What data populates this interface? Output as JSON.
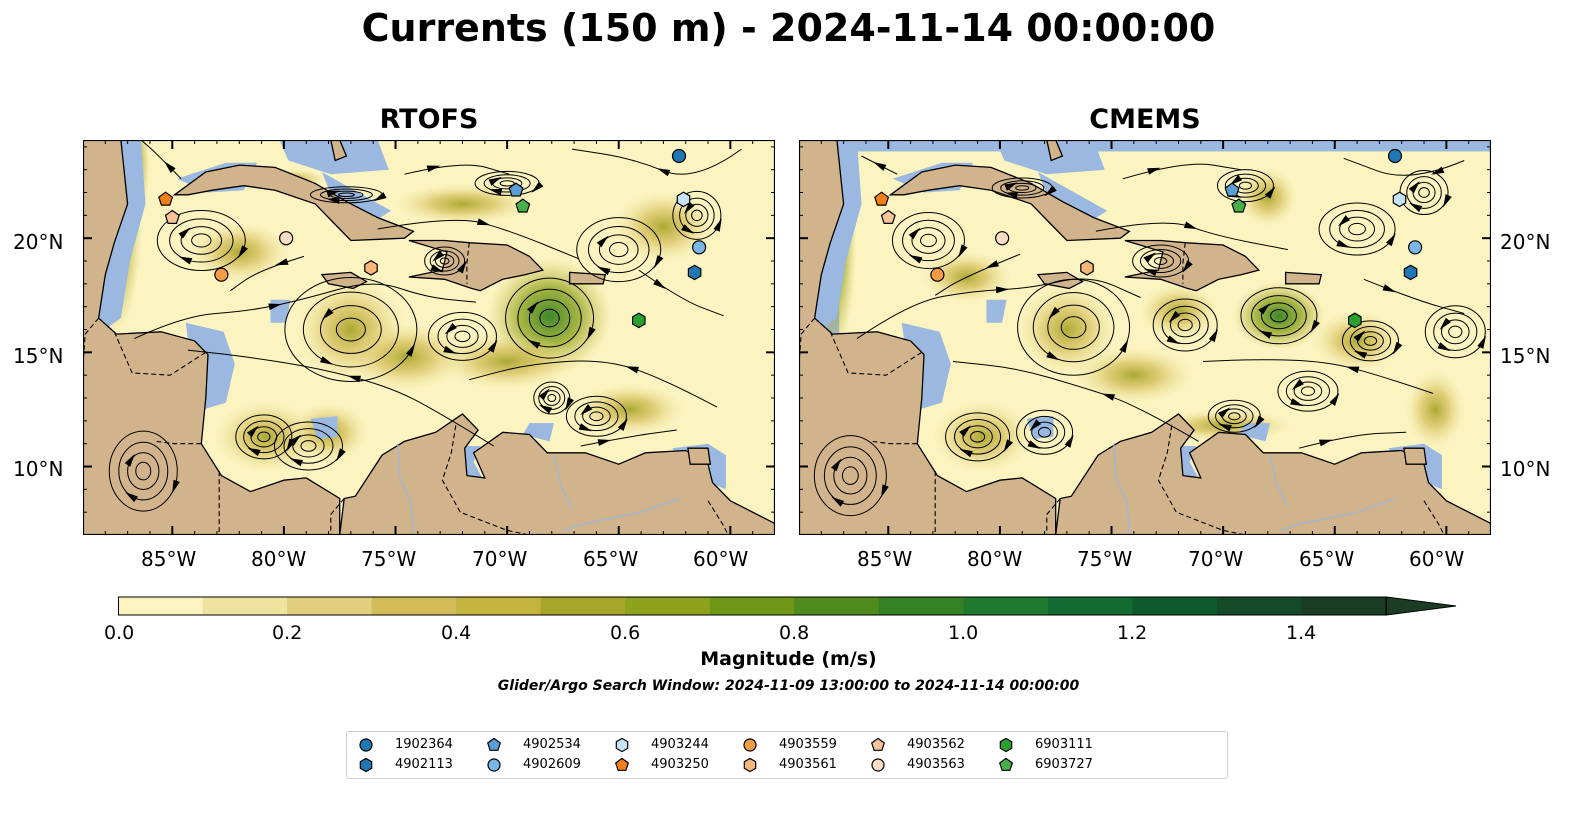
{
  "figure": {
    "title": "Currents (150 m) - 2024-11-14 00:00:00",
    "panels": [
      {
        "id": "rtofs",
        "title": "RTOFS"
      },
      {
        "id": "cmems",
        "title": "CMEMS"
      }
    ],
    "lat_labels": [
      "20°N",
      "15°N",
      "10°N"
    ],
    "lon_labels": [
      "85°W",
      "80°W",
      "75°W",
      "70°W",
      "65°W",
      "60°W"
    ],
    "map_extent": {
      "lon": [
        -89,
        -58
      ],
      "lat": [
        7,
        24.3
      ]
    },
    "colors": {
      "ocean": "#9ab8e0",
      "land": "#d2b48c",
      "field_low": "#fbf4c0",
      "field_high": "#1a2e1a"
    }
  },
  "colorbar": {
    "label": "Magnitude (m/s)",
    "ticks": [
      "0.0",
      "0.2",
      "0.4",
      "0.6",
      "0.8",
      "1.0",
      "1.2",
      "1.4"
    ],
    "range": [
      0.0,
      1.5
    ],
    "extend": "max",
    "colors": [
      "#fbf4c0",
      "#f0e3a0",
      "#e2cf7d",
      "#d4bd58",
      "#c4b33e",
      "#a8a52c",
      "#8ea21c",
      "#6e9617",
      "#4f8a1d",
      "#338122",
      "#1f7a30",
      "#126c31",
      "#0f5a2d",
      "#154a29",
      "#1a3d24"
    ]
  },
  "search_window_note": "Glider/Argo Search Window: 2024-11-09 13:00:00 to 2024-11-14 00:00:00",
  "legend": [
    {
      "id": "1902364",
      "shape": "circle",
      "color": "#1f77b4"
    },
    {
      "id": "4902113",
      "shape": "hexagon",
      "color": "#1f77b4"
    },
    {
      "id": "4902534",
      "shape": "pentagon",
      "color": "#5a9fd4"
    },
    {
      "id": "4902609",
      "shape": "circle",
      "color": "#7ab6e6"
    },
    {
      "id": "4903244",
      "shape": "hexagon",
      "color": "#c6e2f7"
    },
    {
      "id": "4903250",
      "shape": "pentagon",
      "color": "#f57f17"
    },
    {
      "id": "4903559",
      "shape": "circle",
      "color": "#f39c45"
    },
    {
      "id": "4903561",
      "shape": "hexagon",
      "color": "#f7b77a"
    },
    {
      "id": "4903562",
      "shape": "pentagon",
      "color": "#f7c39a"
    },
    {
      "id": "4903563",
      "shape": "circle",
      "color": "#fbdcc4"
    },
    {
      "id": "6903111",
      "shape": "hexagon",
      "color": "#2ca02c"
    },
    {
      "id": "6903727",
      "shape": "pentagon",
      "color": "#48b048"
    }
  ],
  "floats": [
    {
      "id": "1902364",
      "lon": -62.3,
      "lat": 23.6
    },
    {
      "id": "4902113",
      "lon": -61.6,
      "lat": 18.5
    },
    {
      "id": "4902534",
      "lon": -69.6,
      "lat": 22.1
    },
    {
      "id": "4902609",
      "lon": -61.4,
      "lat": 19.6
    },
    {
      "id": "4903244",
      "lon": -62.1,
      "lat": 21.7
    },
    {
      "id": "4903250",
      "lon": -85.3,
      "lat": 21.7
    },
    {
      "id": "4903559",
      "lon": -82.8,
      "lat": 18.4
    },
    {
      "id": "4903561",
      "lon": -76.1,
      "lat": 18.7
    },
    {
      "id": "4903562",
      "lon": -85.0,
      "lat": 20.9
    },
    {
      "id": "4903563",
      "lon": -79.9,
      "lat": 20.0
    },
    {
      "id": "6903111",
      "lon": -64.1,
      "lat": 16.4
    },
    {
      "id": "6903727",
      "lon": -69.3,
      "lat": 21.4
    }
  ]
}
